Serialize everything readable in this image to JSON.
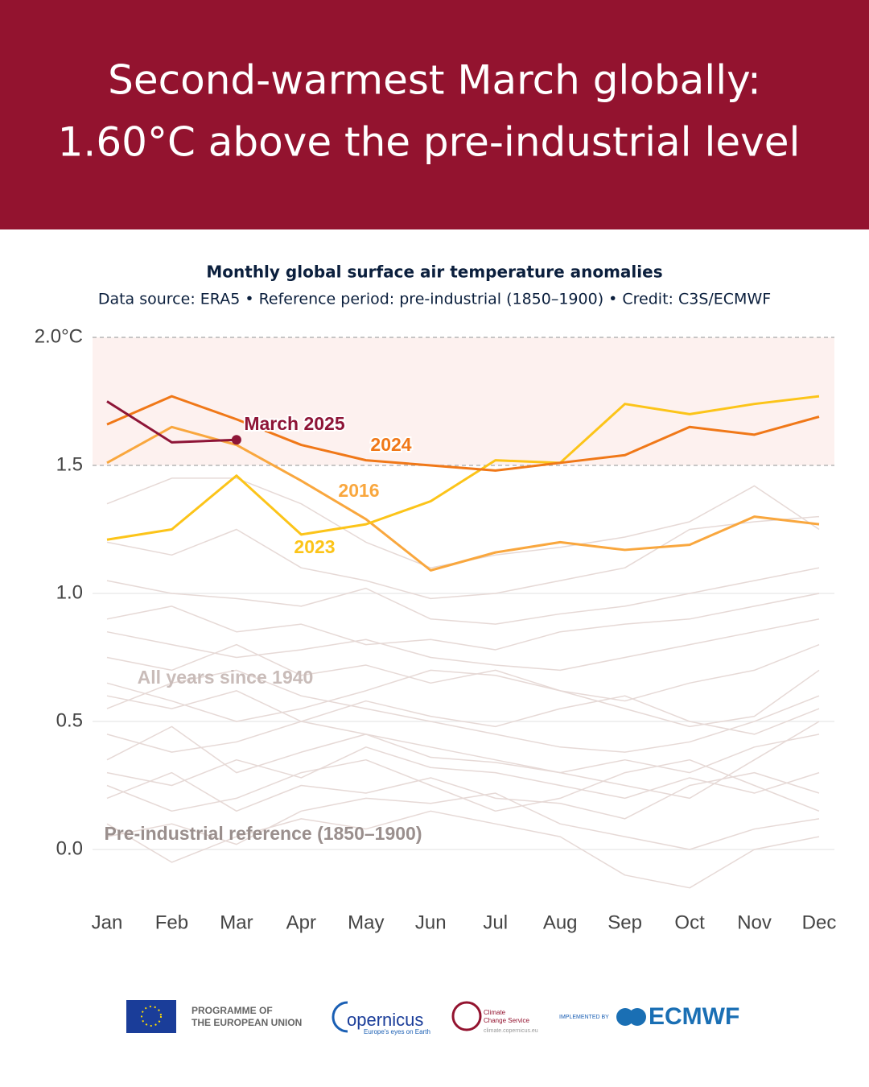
{
  "header": {
    "title_lines": [
      "Second-warmest March globally:",
      "1.60°C above the pre-industrial level"
    ]
  },
  "chart_data": {
    "type": "line",
    "title": "Monthly global surface air temperature anomalies",
    "subtitle": "Data source: ERA5 • Reference period: pre-industrial (1850–1900) • Credit: C3S/ECMWF",
    "categories": [
      "Jan",
      "Feb",
      "Mar",
      "Apr",
      "May",
      "Jun",
      "Jul",
      "Aug",
      "Sep",
      "Oct",
      "Nov",
      "Dec"
    ],
    "ylim": [
      -0.2,
      2.0
    ],
    "yticks": [
      {
        "value": 0,
        "label": "0.0"
      },
      0.5,
      {
        "value": 1,
        "label": "1.0"
      },
      1.5,
      {
        "value": 2,
        "label": "2.0°C"
      }
    ],
    "grid": true,
    "shaded_band": [
      1.5,
      2.0
    ],
    "background": {
      "name": "All years since 1940",
      "color": "#e6d9d6",
      "lines": [
        [
          0.05,
          0.1,
          0.02,
          0.15,
          0.2,
          0.18,
          0.22,
          0.1,
          0.05,
          0.0,
          0.08,
          0.12
        ],
        [
          0.3,
          0.25,
          0.35,
          0.28,
          0.4,
          0.32,
          0.3,
          0.25,
          0.2,
          0.28,
          0.22,
          0.3
        ],
        [
          0.45,
          0.38,
          0.42,
          0.5,
          0.45,
          0.36,
          0.34,
          0.3,
          0.35,
          0.3,
          0.4,
          0.45
        ],
        [
          0.2,
          0.3,
          0.15,
          0.25,
          0.22,
          0.28,
          0.2,
          0.18,
          0.12,
          0.25,
          0.3,
          0.22
        ],
        [
          0.6,
          0.55,
          0.62,
          0.5,
          0.58,
          0.52,
          0.48,
          0.55,
          0.6,
          0.5,
          0.45,
          0.55
        ],
        [
          0.75,
          0.7,
          0.8,
          0.68,
          0.72,
          0.65,
          0.7,
          0.62,
          0.58,
          0.65,
          0.7,
          0.8
        ],
        [
          0.9,
          0.95,
          0.85,
          0.88,
          0.8,
          0.82,
          0.78,
          0.85,
          0.88,
          0.9,
          0.95,
          1.0
        ],
        [
          1.05,
          1.0,
          0.98,
          0.95,
          1.02,
          0.9,
          0.88,
          0.92,
          0.95,
          1.0,
          1.05,
          1.1
        ],
        [
          1.2,
          1.15,
          1.25,
          1.1,
          1.05,
          0.98,
          1.0,
          1.05,
          1.1,
          1.25,
          1.28,
          1.3
        ],
        [
          0.35,
          0.48,
          0.3,
          0.38,
          0.45,
          0.4,
          0.35,
          0.3,
          0.25,
          0.2,
          0.35,
          0.5
        ],
        [
          0.1,
          -0.05,
          0.05,
          0.12,
          0.08,
          0.15,
          0.1,
          0.05,
          -0.1,
          -0.15,
          0.0,
          0.05
        ],
        [
          0.55,
          0.65,
          0.7,
          0.6,
          0.55,
          0.5,
          0.45,
          0.4,
          0.38,
          0.42,
          0.5,
          0.6
        ],
        [
          0.85,
          0.8,
          0.75,
          0.78,
          0.82,
          0.75,
          0.72,
          0.7,
          0.75,
          0.8,
          0.85,
          0.9
        ],
        [
          1.35,
          1.45,
          1.45,
          1.35,
          1.2,
          1.1,
          1.15,
          1.18,
          1.22,
          1.28,
          1.42,
          1.25
        ],
        [
          0.25,
          0.15,
          0.2,
          0.3,
          0.35,
          0.25,
          0.15,
          0.2,
          0.3,
          0.35,
          0.25,
          0.15
        ],
        [
          0.65,
          0.58,
          0.5,
          0.55,
          0.62,
          0.7,
          0.68,
          0.62,
          0.55,
          0.48,
          0.52,
          0.7
        ]
      ]
    },
    "series": [
      {
        "name": "2016",
        "color": "#f9a73e",
        "values": [
          1.51,
          1.65,
          1.58,
          1.44,
          1.29,
          1.09,
          1.16,
          1.2,
          1.17,
          1.19,
          1.3,
          1.27
        ]
      },
      {
        "name": "2023",
        "color": "#fcc419",
        "values": [
          1.21,
          1.25,
          1.46,
          1.23,
          1.27,
          1.36,
          1.52,
          1.51,
          1.74,
          1.7,
          1.74,
          1.77
        ]
      },
      {
        "name": "2024",
        "color": "#f07818",
        "values": [
          1.66,
          1.77,
          1.68,
          1.58,
          1.52,
          1.5,
          1.48,
          1.51,
          1.54,
          1.65,
          1.62,
          1.69
        ]
      },
      {
        "name": "March 2025",
        "color": "#8e1537",
        "values": [
          1.75,
          1.59,
          1.6,
          null,
          null,
          null,
          null,
          null,
          null,
          null,
          null,
          null
        ]
      }
    ],
    "annotations": [
      "Pre-industrial reference (1850–1900)"
    ]
  },
  "footer": {
    "eu": "PROGRAMME OF",
    "eu2": "THE EUROPEAN UNION",
    "copernicus": "opernicus",
    "copernicus_tag": "Europe's eyes on Earth",
    "c3s": "Climate",
    "c3s2": "Change Service",
    "c3s_url": "climate.copernicus.eu",
    "impl": "IMPLEMENTED BY",
    "ecmwf": "ECMWF"
  }
}
